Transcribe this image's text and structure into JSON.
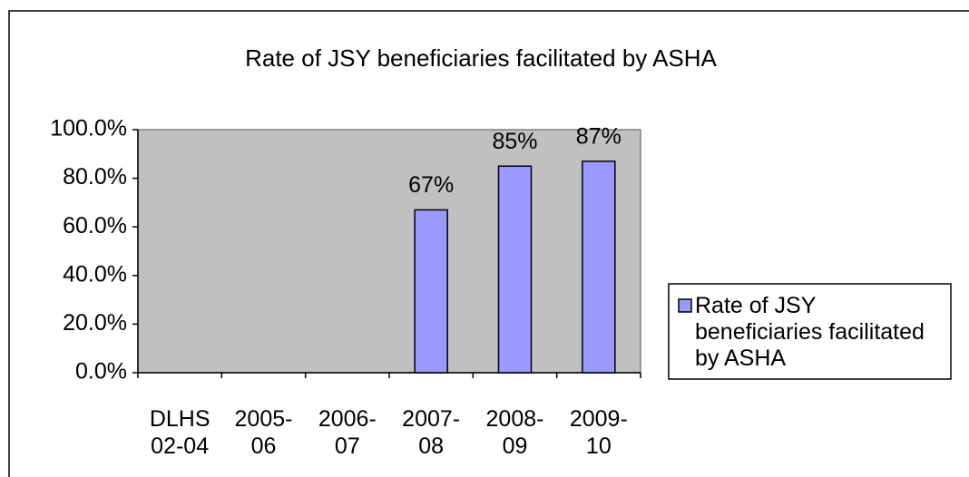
{
  "chart_data": {
    "type": "bar",
    "title": "Rate of JSY beneficiaries facilitated by ASHA",
    "categories": [
      "DLHS 02-04",
      "2005-06",
      "2006-07",
      "2007-08",
      "2008-09",
      "2009-10"
    ],
    "series": [
      {
        "name": "Rate of JSY beneficiaries facilitated by ASHA",
        "color": "#9999ff",
        "values": [
          null,
          null,
          null,
          67,
          85,
          87
        ],
        "value_labels": [
          null,
          null,
          null,
          "67%",
          "85%",
          "87%"
        ]
      }
    ],
    "ylim": [
      0,
      100
    ],
    "yticks": [
      {
        "value": 0,
        "label": "0.0%"
      },
      {
        "value": 20,
        "label": "20.0%"
      },
      {
        "value": 40,
        "label": "40.0%"
      },
      {
        "value": 60,
        "label": "60.0%"
      },
      {
        "value": 80,
        "label": "80.0%"
      },
      {
        "value": 100,
        "label": "100.0%"
      }
    ],
    "legend": "right",
    "plot_background": "#c0c0c0"
  }
}
